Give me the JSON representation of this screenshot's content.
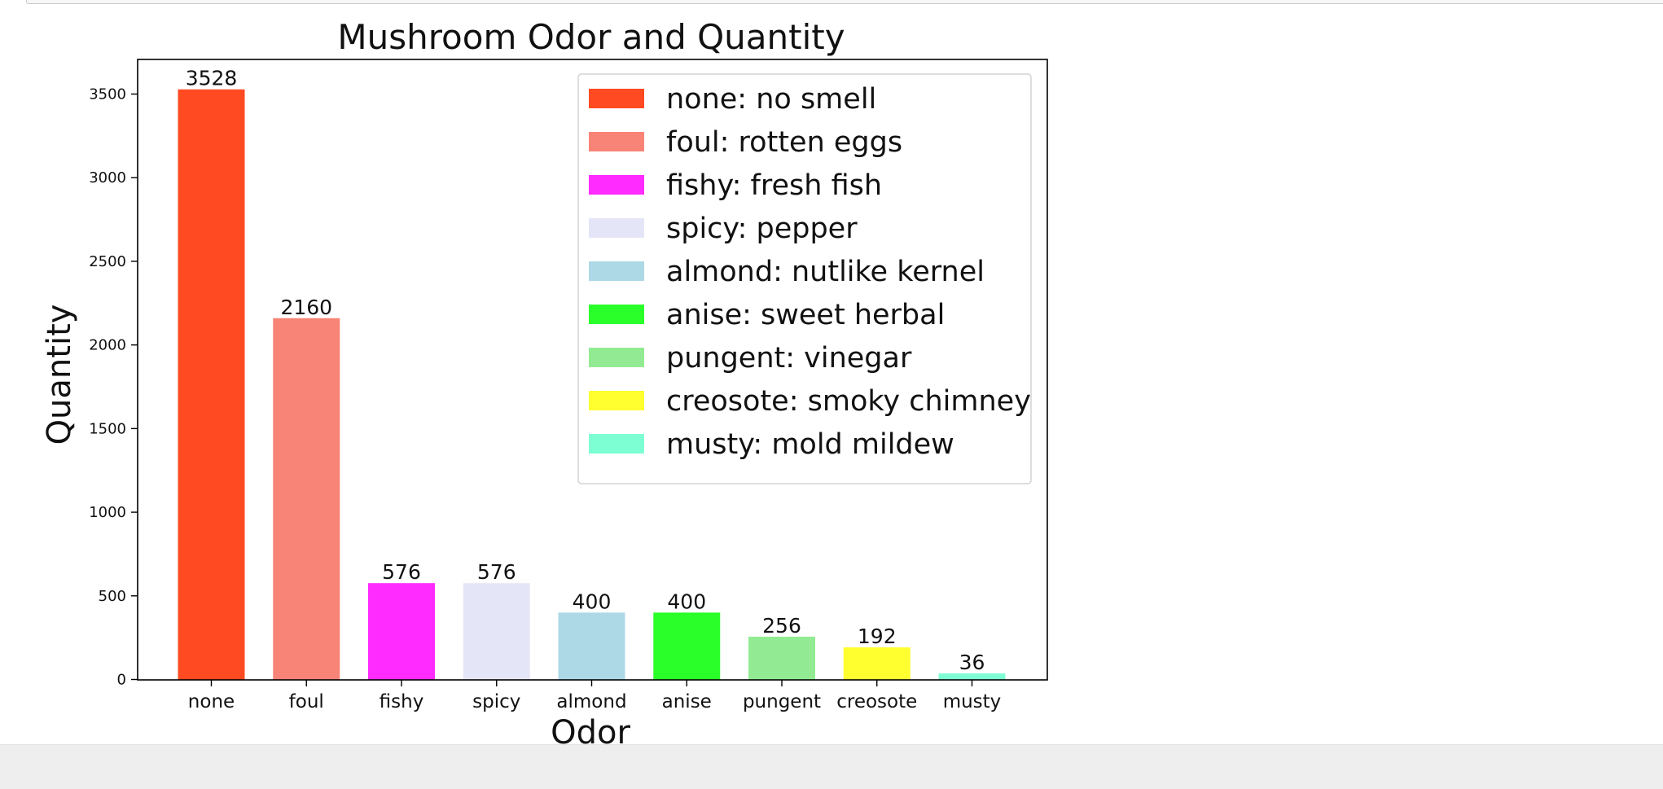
{
  "chart_data": {
    "type": "bar",
    "title": "Mushroom Odor and Quantity",
    "xlabel": "Odor",
    "ylabel": "Quantity",
    "ylim": [
      0,
      3700
    ],
    "yticks": [
      0,
      500,
      1000,
      1500,
      2000,
      2500,
      3000,
      3500
    ],
    "categories": [
      "none",
      "foul",
      "fishy",
      "spicy",
      "almond",
      "anise",
      "pungent",
      "creosote",
      "musty"
    ],
    "values": [
      3528,
      2160,
      576,
      576,
      400,
      400,
      256,
      192,
      36
    ],
    "colors": [
      "#FF4A22",
      "#F88377",
      "#FF2BFF",
      "#E5E5F8",
      "#ADD8E6",
      "#2AFF2A",
      "#92EB92",
      "#FFFF2F",
      "#7EFFD3"
    ],
    "legend": {
      "placement": "top-right",
      "entries": [
        "none: no smell",
        "foul: rotten eggs",
        "fishy: fresh fish",
        "spicy: pepper",
        "almond: nutlike kernel",
        "anise: sweet herbal",
        "pungent: vinegar",
        "creosote: smoky chimney",
        "musty: mold mildew"
      ]
    },
    "grid": false
  }
}
